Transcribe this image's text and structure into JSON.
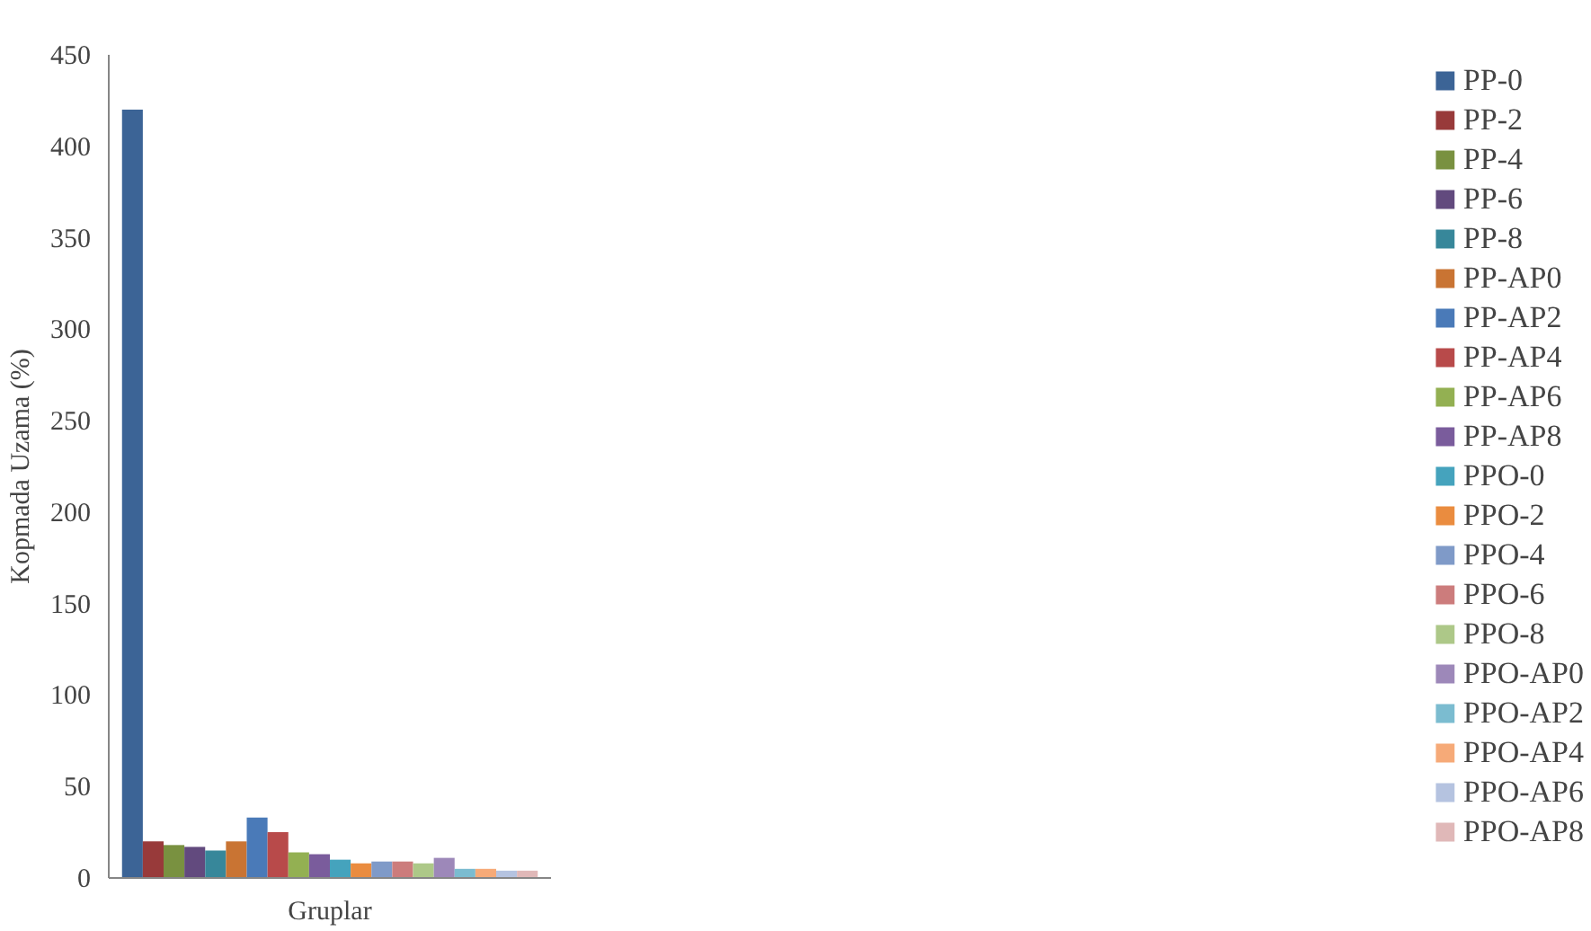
{
  "chart_data": {
    "type": "bar",
    "xlabel": "Gruplar",
    "ylabel": "Kopmada Uzama (%)",
    "categories": [
      null
    ],
    "ylim": [
      0,
      450
    ],
    "yticks": [
      0,
      50,
      100,
      150,
      200,
      250,
      300,
      350,
      400,
      450
    ],
    "grid": false,
    "legend": "right",
    "series": [
      {
        "name": "PP-0",
        "color": "#3c6496",
        "values": [
          420
        ]
      },
      {
        "name": "PP-2",
        "color": "#983a3a",
        "values": [
          20
        ]
      },
      {
        "name": "PP-4",
        "color": "#799140",
        "values": [
          18
        ]
      },
      {
        "name": "PP-6",
        "color": "#624a7e",
        "values": [
          17
        ]
      },
      {
        "name": "PP-8",
        "color": "#37879a",
        "values": [
          15
        ]
      },
      {
        "name": "PP-AP0",
        "color": "#c97433",
        "values": [
          20
        ]
      },
      {
        "name": "PP-AP2",
        "color": "#4a7ab8",
        "values": [
          33
        ]
      },
      {
        "name": "PP-AP4",
        "color": "#b84a4a",
        "values": [
          25
        ]
      },
      {
        "name": "PP-AP6",
        "color": "#93b052",
        "values": [
          14
        ]
      },
      {
        "name": "PP-AP8",
        "color": "#7a5c9c",
        "values": [
          13
        ]
      },
      {
        "name": "PPO-0",
        "color": "#45a3bd",
        "values": [
          10
        ]
      },
      {
        "name": "PPO-2",
        "color": "#ea8c3f",
        "values": [
          8
        ]
      },
      {
        "name": "PPO-4",
        "color": "#7f9ac8",
        "values": [
          9
        ]
      },
      {
        "name": "PPO-6",
        "color": "#cc7c7c",
        "values": [
          9
        ]
      },
      {
        "name": "PPO-8",
        "color": "#adc888",
        "values": [
          8
        ]
      },
      {
        "name": "PPO-AP0",
        "color": "#9d88b9",
        "values": [
          11
        ]
      },
      {
        "name": "PPO-AP2",
        "color": "#7bbcd0",
        "values": [
          5
        ]
      },
      {
        "name": "PPO-AP4",
        "color": "#f6aa78",
        "values": [
          5
        ]
      },
      {
        "name": "PPO-AP6",
        "color": "#b5c3e0",
        "values": [
          4
        ]
      },
      {
        "name": "PPO-AP8",
        "color": "#e0b8b8",
        "values": [
          4
        ]
      }
    ]
  }
}
